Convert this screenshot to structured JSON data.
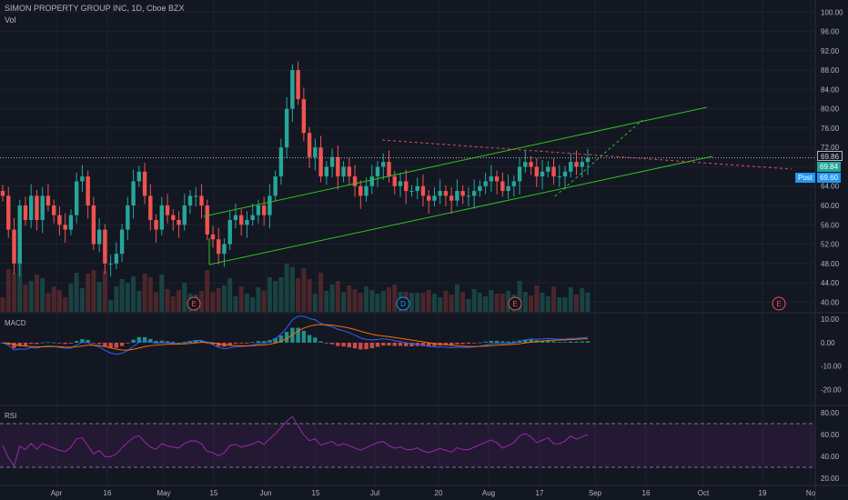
{
  "header": {
    "symbol_line": "SIMON PROPERTY GROUP INC, 1D, Cboe BZX",
    "vol_label": "Vol"
  },
  "panes": {
    "macd_label": "MACD",
    "rsi_label": "RSI"
  },
  "price_badges": {
    "last": "69.86",
    "current": "69.84",
    "post_label": "Post",
    "post_value": "69.60"
  },
  "event_markers": [
    "E",
    "D",
    "E",
    "E"
  ],
  "colors": {
    "background": "#131722",
    "up": "#26a69a",
    "down": "#ef5350",
    "channel": "#2fc21f",
    "resistance": "#e05050",
    "macd_line": "#2962ff",
    "signal_line": "#ff6d00",
    "rsi_line": "#9c27b0"
  },
  "chart_data": [
    {
      "type": "candlestick",
      "title": "SIMON PROPERTY GROUP INC, 1D, Cboe BZX",
      "ylim": [
        38,
        101
      ],
      "y_ticks": [
        "100.00",
        "96.00",
        "92.00",
        "88.00",
        "84.00",
        "80.00",
        "76.00",
        "72.00",
        "68.00",
        "64.00",
        "60.00",
        "56.00",
        "52.00",
        "48.00",
        "44.00",
        "40.00"
      ],
      "x_ticks": [
        "Apr",
        "16",
        "May",
        "15",
        "Jun",
        "15",
        "Jul",
        "20",
        "Aug",
        "17",
        "Sep",
        "16",
        "Oct",
        "19",
        "No"
      ],
      "closes": [
        62,
        55,
        48,
        60,
        57,
        62,
        57,
        62,
        60,
        58,
        56,
        55,
        58,
        65,
        66,
        60,
        52,
        55,
        48,
        48,
        50,
        55,
        60,
        65,
        67,
        62,
        57,
        55,
        60,
        58,
        57,
        56,
        60,
        62,
        62,
        60,
        54,
        53,
        50,
        52,
        57,
        58,
        56,
        57,
        58,
        60,
        58,
        62,
        66,
        72,
        80,
        88,
        82,
        75,
        70,
        72,
        66,
        68,
        70,
        66,
        68,
        66,
        64,
        62,
        64,
        66,
        68,
        69,
        66,
        64,
        65,
        63,
        63,
        64,
        62,
        61,
        62,
        63,
        62,
        61,
        63,
        62,
        62,
        63,
        64,
        65,
        66,
        65,
        63,
        64,
        65,
        68,
        69,
        68,
        66,
        67,
        68,
        66,
        66,
        67,
        69,
        68,
        69,
        69.84
      ],
      "series": [
        {
          "name": "Vol",
          "type": "volume"
        },
        {
          "name": "MACD",
          "ylim": [
            -26,
            12
          ],
          "y_ticks": [
            "10.00",
            "0.00",
            "-10.00",
            "-20.00"
          ]
        },
        {
          "name": "RSI",
          "ylim": [
            15,
            85
          ],
          "y_ticks": [
            "80.00",
            "60.00",
            "40.00",
            "20.00"
          ],
          "band": [
            30,
            70
          ]
        }
      ],
      "grid": true
    }
  ]
}
